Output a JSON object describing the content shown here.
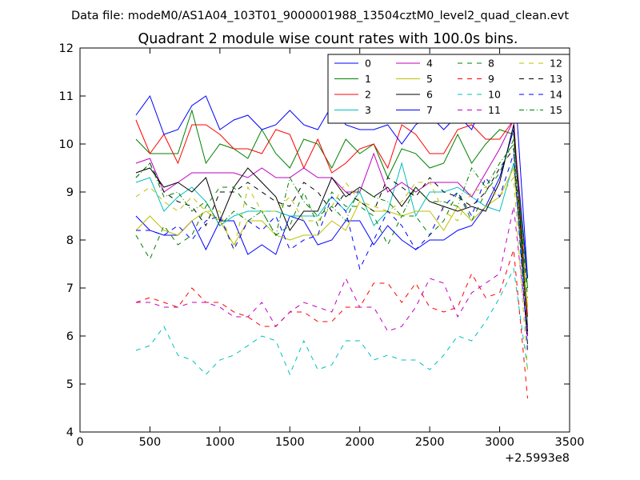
{
  "chart_data": {
    "type": "line",
    "suptitle": "Data file: modeM0/AS1A04_103T01_9000001988_13504cztM0_level2_quad_clean.evt",
    "title": "Quadrant 2 module wise count rates with 100.0s bins.",
    "xlabel": "",
    "ylabel": "",
    "x_offset_label": "+2.5993e8",
    "xlim": [
      0,
      3500
    ],
    "ylim": [
      4,
      12
    ],
    "xticks": [
      0,
      500,
      1000,
      1500,
      2000,
      2500,
      3000,
      3500
    ],
    "yticks": [
      4,
      5,
      6,
      7,
      8,
      9,
      10,
      11,
      12
    ],
    "legend_position": "top-right",
    "x": [
      400,
      500,
      600,
      700,
      800,
      900,
      1000,
      1100,
      1200,
      1300,
      1400,
      1500,
      1600,
      1700,
      1800,
      1900,
      2000,
      2100,
      2200,
      2300,
      2400,
      2500,
      2600,
      2700,
      2800,
      2900,
      3000,
      3100,
      3200
    ],
    "series": [
      {
        "name": "0",
        "color": "#0000ff",
        "dash": "solid",
        "values": [
          8.5,
          8.2,
          8.1,
          8.1,
          8.4,
          7.8,
          8.4,
          8.4,
          7.7,
          7.9,
          7.7,
          8.5,
          8.4,
          7.9,
          8.0,
          8.4,
          8.4,
          7.9,
          8.3,
          8.0,
          7.8,
          8.0,
          8.0,
          8.2,
          8.3,
          8.7,
          9.3,
          10.3,
          7.2
        ]
      },
      {
        "name": "1",
        "color": "#008000",
        "dash": "solid",
        "values": [
          10.1,
          9.8,
          9.8,
          9.8,
          10.7,
          9.6,
          10.0,
          9.9,
          9.7,
          10.3,
          9.8,
          9.5,
          10.1,
          10.0,
          9.5,
          10.1,
          9.8,
          10.0,
          9.3,
          9.9,
          9.8,
          9.5,
          9.6,
          10.2,
          9.6,
          10.0,
          10.3,
          10.2,
          7.0
        ]
      },
      {
        "name": "2",
        "color": "#ff0000",
        "dash": "solid",
        "values": [
          10.5,
          9.8,
          10.2,
          9.6,
          10.4,
          10.4,
          10.2,
          9.9,
          9.9,
          9.8,
          10.3,
          10.2,
          9.5,
          10.1,
          9.4,
          9.6,
          9.9,
          10.0,
          9.5,
          10.4,
          10.2,
          9.8,
          9.8,
          10.3,
          10.4,
          10.1,
          10.1,
          10.5,
          6.4
        ]
      },
      {
        "name": "3",
        "color": "#00bfbf",
        "dash": "solid",
        "values": [
          9.2,
          9.3,
          8.6,
          8.9,
          9.1,
          8.8,
          8.3,
          8.5,
          8.6,
          8.6,
          8.6,
          8.5,
          8.5,
          8.5,
          8.9,
          8.6,
          9.0,
          8.3,
          8.6,
          9.6,
          8.5,
          9.0,
          9.0,
          9.1,
          8.9,
          8.7,
          8.6,
          9.6,
          6.2
        ]
      },
      {
        "name": "4",
        "color": "#bf00bf",
        "dash": "solid",
        "values": [
          9.6,
          9.7,
          9.0,
          9.2,
          9.4,
          9.4,
          9.4,
          9.4,
          9.3,
          9.5,
          9.3,
          9.3,
          9.5,
          9.3,
          9.3,
          9.0,
          9.0,
          9.8,
          9.0,
          9.2,
          9.0,
          9.2,
          9.2,
          9.2,
          8.9,
          9.4,
          9.9,
          10.5,
          6.0
        ]
      },
      {
        "name": "5",
        "color": "#bfbf00",
        "dash": "solid",
        "values": [
          8.2,
          8.5,
          8.2,
          8.1,
          8.4,
          8.6,
          8.4,
          7.9,
          8.4,
          8.4,
          8.1,
          8.0,
          8.1,
          8.1,
          8.4,
          8.2,
          8.8,
          8.6,
          8.6,
          8.5,
          8.6,
          8.6,
          8.2,
          8.7,
          8.4,
          8.7,
          8.9,
          9.5,
          6.6
        ]
      },
      {
        "name": "6",
        "color": "#000000",
        "dash": "solid",
        "values": [
          9.4,
          9.5,
          9.1,
          9.2,
          9.0,
          9.3,
          8.4,
          9.1,
          9.5,
          9.2,
          8.9,
          8.2,
          8.6,
          8.6,
          9.3,
          8.9,
          9.1,
          8.9,
          9.1,
          8.7,
          9.1,
          8.8,
          8.7,
          8.6,
          8.7,
          8.6,
          9.2,
          10.4,
          6.1
        ]
      },
      {
        "name": "7",
        "color": "#0000ff",
        "dash": "solid",
        "values": [
          10.6,
          11.0,
          10.2,
          10.3,
          10.8,
          11.0,
          10.3,
          10.5,
          10.6,
          10.3,
          10.4,
          10.7,
          10.4,
          10.3,
          10.8,
          10.4,
          10.3,
          10.3,
          10.4,
          10.0,
          10.4,
          10.6,
          10.3,
          10.6,
          10.3,
          11.0,
          10.8,
          11.6,
          7.2
        ]
      },
      {
        "name": "8",
        "color": "#008000",
        "dash": "dashed",
        "values": [
          8.1,
          7.6,
          8.3,
          7.9,
          8.1,
          8.7,
          9.1,
          9.1,
          8.7,
          8.6,
          8.1,
          8.3,
          9.0,
          8.3,
          9.0,
          8.7,
          8.7,
          8.5,
          7.9,
          8.5,
          8.5,
          8.1,
          8.4,
          9.0,
          8.4,
          9.0,
          9.4,
          10.1,
          6.8
        ]
      },
      {
        "name": "9",
        "color": "#ff0000",
        "dash": "dashed",
        "values": [
          6.7,
          6.8,
          6.7,
          6.6,
          7.0,
          6.7,
          6.7,
          6.5,
          6.4,
          6.2,
          6.2,
          6.5,
          6.5,
          6.3,
          6.3,
          6.6,
          6.6,
          7.1,
          7.1,
          6.7,
          7.1,
          6.6,
          6.5,
          6.6,
          7.3,
          6.8,
          6.9,
          7.8,
          4.7
        ]
      },
      {
        "name": "10",
        "color": "#00bfbf",
        "dash": "dashed",
        "values": [
          5.7,
          5.8,
          6.2,
          5.6,
          5.5,
          5.2,
          5.5,
          5.6,
          5.8,
          6.0,
          5.9,
          5.2,
          5.9,
          5.3,
          5.4,
          5.9,
          5.9,
          5.5,
          5.6,
          5.5,
          5.5,
          5.3,
          5.6,
          6.0,
          5.9,
          6.3,
          6.8,
          7.4,
          5.3
        ]
      },
      {
        "name": "11",
        "color": "#bf00bf",
        "dash": "dashed",
        "values": [
          6.7,
          6.7,
          6.6,
          6.6,
          6.7,
          6.7,
          6.6,
          6.4,
          6.4,
          6.7,
          6.2,
          6.5,
          6.7,
          6.6,
          6.5,
          7.2,
          6.6,
          6.6,
          6.1,
          6.2,
          6.6,
          7.2,
          7.1,
          6.4,
          6.9,
          7.1,
          7.3,
          8.7,
          6.0
        ]
      },
      {
        "name": "12",
        "color": "#bfbf00",
        "dash": "dashed",
        "values": [
          8.9,
          9.1,
          8.8,
          8.6,
          8.9,
          8.6,
          8.6,
          7.8,
          9.1,
          8.6,
          8.6,
          8.9,
          8.4,
          8.4,
          8.7,
          9.2,
          8.8,
          8.7,
          8.6,
          8.8,
          9.2,
          9.2,
          8.6,
          8.4,
          9.0,
          9.1,
          8.9,
          9.3,
          5.3
        ]
      },
      {
        "name": "13",
        "color": "#000000",
        "dash": "dashed",
        "values": [
          9.3,
          9.6,
          9.0,
          8.8,
          8.7,
          8.3,
          9.0,
          9.0,
          9.2,
          9.0,
          8.8,
          8.7,
          9.2,
          9.0,
          8.6,
          9.0,
          8.8,
          8.6,
          9.3,
          9.1,
          8.9,
          9.3,
          9.0,
          8.9,
          8.7,
          9.0,
          9.5,
          9.9,
          5.8
        ]
      },
      {
        "name": "14",
        "color": "#0000ff",
        "dash": "dashed",
        "values": [
          8.2,
          8.2,
          8.1,
          8.3,
          8.0,
          8.4,
          8.5,
          7.8,
          8.4,
          8.2,
          8.5,
          7.8,
          8.0,
          8.1,
          8.9,
          8.6,
          7.4,
          8.0,
          8.6,
          8.3,
          7.8,
          8.1,
          8.7,
          9.0,
          8.5,
          9.3,
          8.9,
          9.8,
          5.7
        ]
      },
      {
        "name": "15",
        "color": "#008000",
        "dash": "dashdot",
        "values": [
          9.3,
          9.6,
          8.9,
          9.0,
          8.6,
          8.8,
          8.3,
          8.6,
          8.4,
          8.6,
          8.1,
          9.3,
          8.8,
          8.5,
          8.7,
          8.4,
          9.1,
          8.9,
          8.8,
          8.5,
          9.1,
          8.8,
          8.8,
          8.7,
          9.5,
          9.1,
          9.6,
          10.0,
          6.2
        ]
      }
    ]
  }
}
